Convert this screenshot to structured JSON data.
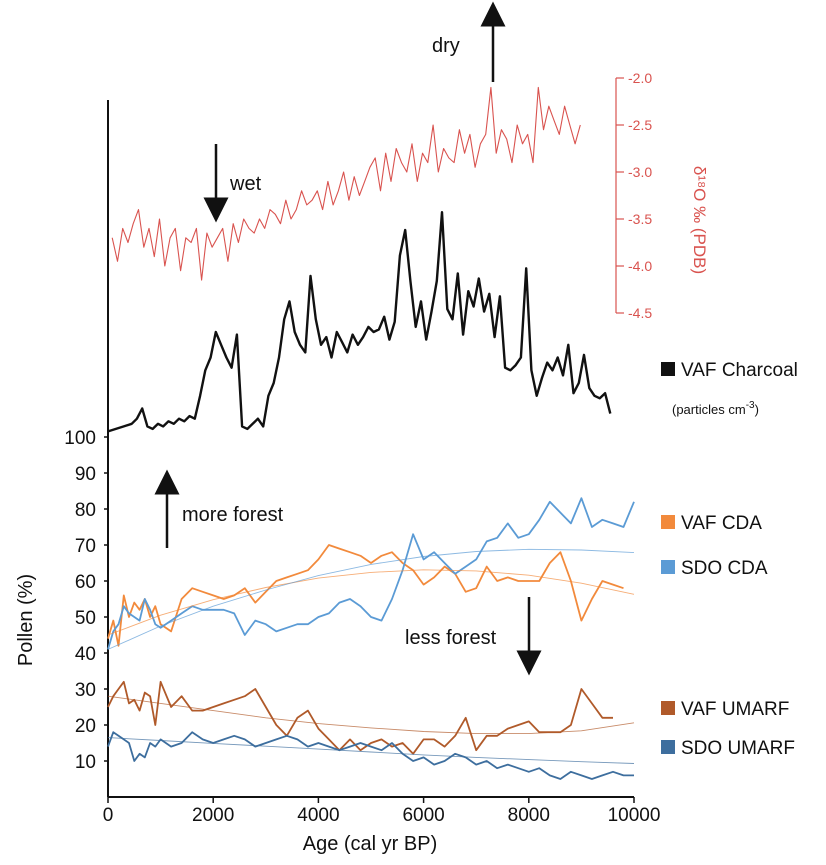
{
  "chart_data": {
    "type": "line",
    "xlabel": "Age (cal yr BP)",
    "xlim": [
      0,
      10000
    ],
    "x_ticks": [
      "0",
      "2000",
      "4000",
      "6000",
      "8000",
      "10000"
    ],
    "pollen_axis": {
      "label": "Pollen (%)",
      "ylim": [
        0,
        100
      ],
      "ticks": [
        "10",
        "20",
        "30",
        "40",
        "50",
        "60",
        "70",
        "80",
        "90",
        "100"
      ]
    },
    "isotope_axis": {
      "label": "δ¹⁸O ‰ (PDB)",
      "ylim": [
        -4.5,
        -2.0
      ],
      "ticks": [
        "-2.0",
        "-2.5",
        "-3.0",
        "-3.5",
        "-4.0",
        "-4.5"
      ],
      "color": "#d9534f"
    },
    "annotations": {
      "dry": "dry",
      "wet": "wet",
      "more_forest": "more forest",
      "less_forest": "less forest"
    },
    "series": [
      {
        "name": "δ18O",
        "color": "#d9534f",
        "axis": "isotope",
        "x": [
          80,
          180,
          280,
          380,
          480,
          580,
          680,
          780,
          880,
          980,
          1080,
          1180,
          1280,
          1380,
          1480,
          1580,
          1680,
          1780,
          1880,
          1980,
          2080,
          2180,
          2280,
          2380,
          2480,
          2580,
          2680,
          2780,
          2880,
          2980,
          3080,
          3180,
          3280,
          3380,
          3480,
          3580,
          3680,
          3780,
          3880,
          3980,
          4080,
          4180,
          4280,
          4380,
          4480,
          4580,
          4680,
          4780,
          4880,
          4980,
          5080,
          5180,
          5280,
          5380,
          5480,
          5580,
          5680,
          5780,
          5880,
          5980,
          6080,
          6180,
          6280,
          6380,
          6480,
          6580,
          6680,
          6780,
          6880,
          6980,
          7080,
          7180,
          7280,
          7380,
          7480,
          7580,
          7680,
          7780,
          7880,
          7980,
          8080,
          8180,
          8280,
          8380,
          8480,
          8580,
          8680,
          8780,
          8880,
          8980
        ],
        "y": [
          -3.7,
          -3.95,
          -3.6,
          -3.75,
          -3.55,
          -3.4,
          -3.8,
          -3.6,
          -3.9,
          -3.5,
          -4.0,
          -3.7,
          -3.6,
          -4.05,
          -3.7,
          -3.75,
          -3.6,
          -4.15,
          -3.65,
          -3.8,
          -3.7,
          -3.6,
          -3.95,
          -3.55,
          -3.75,
          -3.5,
          -3.6,
          -3.65,
          -3.5,
          -3.6,
          -3.4,
          -3.45,
          -3.55,
          -3.3,
          -3.5,
          -3.4,
          -3.2,
          -3.35,
          -3.3,
          -3.2,
          -3.4,
          -3.1,
          -3.35,
          -3.2,
          -3.0,
          -3.3,
          -3.05,
          -3.25,
          -3.1,
          -2.95,
          -2.85,
          -3.2,
          -2.8,
          -3.1,
          -2.75,
          -2.9,
          -3.0,
          -2.7,
          -3.1,
          -2.8,
          -2.9,
          -2.5,
          -3.0,
          -2.75,
          -2.85,
          -2.9,
          -2.55,
          -2.8,
          -2.6,
          -2.95,
          -2.7,
          -2.6,
          -2.1,
          -2.8,
          -2.55,
          -2.65,
          -2.9,
          -2.5,
          -2.7,
          -2.6,
          -2.9,
          -2.1,
          -2.55,
          -2.3,
          -2.45,
          -2.6,
          -2.3,
          -2.5,
          -2.7,
          -2.5
        ]
      },
      {
        "name": "VAF Charcoal",
        "color": "#111111",
        "axis": "charcoal",
        "x": [
          0,
          150,
          300,
          450,
          550,
          650,
          750,
          850,
          950,
          1050,
          1150,
          1250,
          1350,
          1450,
          1550,
          1650,
          1750,
          1850,
          1950,
          2050,
          2150,
          2250,
          2350,
          2450,
          2550,
          2650,
          2750,
          2850,
          2950,
          3050,
          3150,
          3250,
          3350,
          3450,
          3550,
          3650,
          3750,
          3850,
          3950,
          4050,
          4150,
          4250,
          4350,
          4450,
          4550,
          4650,
          4750,
          4850,
          4950,
          5050,
          5150,
          5250,
          5350,
          5450,
          5550,
          5650,
          5750,
          5850,
          5950,
          6050,
          6150,
          6250,
          6350,
          6450,
          6550,
          6650,
          6750,
          6850,
          6950,
          7050,
          7150,
          7250,
          7350,
          7450,
          7550,
          7650,
          7750,
          7850,
          7950,
          8050,
          8150,
          8250,
          8350,
          8450,
          8550,
          8650,
          8750,
          8850,
          8950,
          9050,
          9150,
          9250,
          9350,
          9450,
          9550
        ],
        "y": [
          0.1,
          0.2,
          0.3,
          0.4,
          0.6,
          1.0,
          0.3,
          0.2,
          0.4,
          0.3,
          0.5,
          0.4,
          0.6,
          0.5,
          0.7,
          0.6,
          1.5,
          2.5,
          3.0,
          4.0,
          3.5,
          3.0,
          2.6,
          3.9,
          0.3,
          0.2,
          0.4,
          0.6,
          0.3,
          1.5,
          2.0,
          3.0,
          4.5,
          5.2,
          4.0,
          3.5,
          3.2,
          6.2,
          4.5,
          3.5,
          3.8,
          3.0,
          4.0,
          3.6,
          3.2,
          3.9,
          3.5,
          3.8,
          4.2,
          4.0,
          4.1,
          4.6,
          3.7,
          4.4,
          7.0,
          8.0,
          6.0,
          4.2,
          5.2,
          3.7,
          4.8,
          6.0,
          8.7,
          4.9,
          4.5,
          6.3,
          3.9,
          5.6,
          5.0,
          6.1,
          4.8,
          5.5,
          3.8,
          5.4,
          2.6,
          2.5,
          2.7,
          3.0,
          6.5,
          2.5,
          1.5,
          2.2,
          2.8,
          2.5,
          3.0,
          2.3,
          3.5,
          1.6,
          2.0,
          3.1,
          1.8,
          1.5,
          1.4,
          1.6,
          0.8
        ]
      },
      {
        "name": "VAF CDA",
        "color": "#f28a3c",
        "axis": "pollen",
        "x": [
          0,
          100,
          200,
          300,
          400,
          500,
          600,
          700,
          800,
          900,
          1000,
          1200,
          1400,
          1600,
          1800,
          2000,
          2200,
          2400,
          2600,
          2800,
          3000,
          3200,
          3400,
          3600,
          3800,
          4000,
          4200,
          4400,
          4600,
          4800,
          5000,
          5200,
          5400,
          5600,
          5800,
          6000,
          6200,
          6400,
          6600,
          6800,
          7000,
          7200,
          7400,
          7600,
          7800,
          8000,
          8200,
          8400,
          8600,
          8800,
          9000,
          9200,
          9400,
          9600,
          9800
        ],
        "y": [
          44,
          49,
          42,
          56,
          50,
          54,
          52,
          55,
          50,
          53,
          48,
          46,
          55,
          58,
          57,
          56,
          55,
          56,
          58,
          54,
          57,
          60,
          61,
          62,
          63,
          66,
          70,
          69,
          68,
          67,
          65,
          67,
          68,
          65,
          63,
          59,
          61,
          64,
          62,
          57,
          58,
          64,
          60,
          61,
          60,
          60,
          60,
          65,
          68,
          60,
          49,
          55,
          60,
          59,
          58
        ]
      },
      {
        "name": "SDO CDA",
        "color": "#5b9bd5",
        "axis": "pollen",
        "x": [
          0,
          100,
          200,
          300,
          400,
          500,
          600,
          700,
          800,
          900,
          1000,
          1200,
          1400,
          1600,
          1800,
          2000,
          2200,
          2400,
          2600,
          2800,
          3000,
          3200,
          3400,
          3600,
          3800,
          4000,
          4200,
          4400,
          4600,
          4800,
          5000,
          5200,
          5400,
          5600,
          5800,
          6000,
          6200,
          6400,
          6600,
          6800,
          7000,
          7200,
          7400,
          7600,
          7800,
          8000,
          8200,
          8400,
          8600,
          8800,
          9000,
          9200,
          9400,
          9600,
          9800,
          10000
        ],
        "y": [
          41,
          46,
          48,
          53,
          51,
          50,
          49,
          55,
          52,
          48,
          47,
          49,
          51,
          53,
          52,
          52,
          52,
          51,
          45,
          49,
          48,
          46,
          47,
          48,
          48,
          50,
          51,
          54,
          55,
          53,
          50,
          49,
          55,
          63,
          73,
          66,
          68,
          65,
          62,
          64,
          66,
          71,
          72,
          76,
          72,
          73,
          77,
          82,
          79,
          76,
          83,
          75,
          77,
          76,
          75,
          82
        ]
      },
      {
        "name": "VAF UMARF",
        "color": "#b05a2a",
        "axis": "pollen",
        "x": [
          0,
          100,
          200,
          300,
          400,
          500,
          600,
          700,
          800,
          900,
          1000,
          1200,
          1400,
          1600,
          1800,
          2000,
          2200,
          2400,
          2600,
          2800,
          3000,
          3200,
          3400,
          3600,
          3800,
          4000,
          4200,
          4400,
          4600,
          4800,
          5000,
          5200,
          5400,
          5600,
          5800,
          6000,
          6200,
          6400,
          6600,
          6800,
          7000,
          7200,
          7400,
          7600,
          7800,
          8000,
          8200,
          8400,
          8600,
          8800,
          9000,
          9200,
          9400,
          9600
        ],
        "y": [
          25,
          28,
          30,
          32,
          26,
          27,
          24,
          29,
          28,
          20,
          32,
          25,
          28,
          24,
          24,
          25,
          26,
          27,
          28,
          30,
          25,
          20,
          17,
          22,
          24,
          19,
          16,
          13,
          16,
          13,
          15,
          16,
          14,
          15,
          12,
          16,
          16,
          14,
          17,
          22,
          13,
          17,
          17,
          19,
          20,
          21,
          18,
          18,
          18,
          20,
          30,
          26,
          22,
          22
        ]
      },
      {
        "name": "SDO UMARF",
        "color": "#3d6e9e",
        "axis": "pollen",
        "x": [
          0,
          100,
          200,
          300,
          400,
          500,
          600,
          700,
          800,
          900,
          1000,
          1200,
          1400,
          1600,
          1800,
          2000,
          2200,
          2400,
          2600,
          2800,
          3000,
          3200,
          3400,
          3600,
          3800,
          4000,
          4200,
          4400,
          4600,
          4800,
          5000,
          5200,
          5400,
          5600,
          5800,
          6000,
          6200,
          6400,
          6600,
          6800,
          7000,
          7200,
          7400,
          7600,
          7800,
          8000,
          8200,
          8400,
          8600,
          8800,
          9000,
          9200,
          9400,
          9600,
          9800,
          10000
        ],
        "y": [
          14,
          18,
          17,
          16,
          15,
          10,
          12,
          11,
          15,
          14,
          16,
          14,
          15,
          18,
          16,
          15,
          16,
          17,
          16,
          14,
          15,
          16,
          17,
          16,
          14,
          15,
          14,
          13,
          14,
          15,
          14,
          13,
          15,
          12,
          10,
          11,
          9,
          10,
          12,
          11,
          9,
          10,
          8,
          9,
          8,
          7,
          8,
          6,
          5,
          7,
          6,
          5,
          6,
          7,
          6,
          6
        ]
      },
      {
        "name": "VAF CDA trend",
        "color": "#f28a3c",
        "axis": "pollen",
        "trend": true,
        "x": [
          0,
          1000,
          2000,
          3000,
          4000,
          5000,
          6000,
          7000,
          8000,
          9000,
          10000
        ],
        "y": [
          45,
          50.5,
          54.8,
          58.2,
          60.8,
          62.4,
          63.1,
          62.8,
          61.6,
          59.4,
          56.3
        ]
      },
      {
        "name": "SDO CDA trend",
        "color": "#5b9bd5",
        "axis": "pollen",
        "trend": true,
        "x": [
          0,
          1000,
          2000,
          3000,
          4000,
          5000,
          6000,
          7000,
          8000,
          9000,
          10000
        ],
        "y": [
          41,
          47.5,
          53,
          57.5,
          61.5,
          64.6,
          66.8,
          68.2,
          68.8,
          68.6,
          67.9
        ]
      },
      {
        "name": "VAF UMARF trend",
        "color": "#b05a2a",
        "axis": "pollen",
        "trend": true,
        "x": [
          0,
          1000,
          2000,
          3000,
          4000,
          5000,
          6000,
          7000,
          8000,
          9000,
          10000
        ],
        "y": [
          28,
          26,
          24,
          22,
          20.4,
          19.2,
          18.2,
          17.6,
          17.6,
          18.4,
          20.6
        ]
      },
      {
        "name": "SDO UMARF trend",
        "color": "#3d6e9e",
        "axis": "pollen",
        "trend": true,
        "x": [
          0,
          1000,
          2000,
          3000,
          4000,
          5000,
          6000,
          7000,
          8000,
          9000,
          10000
        ],
        "y": [
          16.5,
          15.7,
          14.9,
          14.1,
          13.3,
          12.5,
          11.7,
          11,
          10.4,
          9.8,
          9.3
        ]
      }
    ],
    "legend": [
      {
        "label": "VAF Charcoal",
        "color": "#111111"
      },
      {
        "label": "VAF CDA",
        "color": "#f28a3c"
      },
      {
        "label": "SDO CDA",
        "color": "#5b9bd5"
      },
      {
        "label": "VAF UMARF",
        "color": "#b05a2a"
      },
      {
        "label": "SDO UMARF",
        "color": "#3d6e9e"
      }
    ],
    "charcoal_unit": "(particles cm",
    "charcoal_unit_exp": "-3",
    "charcoal_unit_close": ")"
  }
}
